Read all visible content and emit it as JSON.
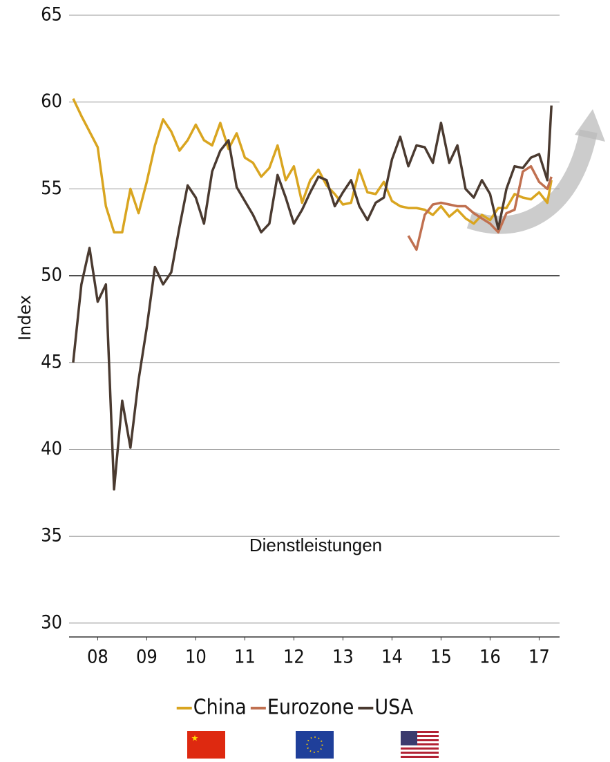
{
  "chart_data": {
    "type": "line",
    "y_label": "Index",
    "annotation": "Dienstleistungen",
    "x": [
      0,
      2,
      4,
      6,
      8,
      10,
      12,
      14,
      16,
      18,
      20,
      22,
      24,
      26,
      28,
      30,
      32,
      34,
      36,
      38,
      40,
      42,
      44,
      46,
      48,
      50,
      52,
      54,
      56,
      58,
      60,
      62,
      64,
      66,
      68,
      70,
      72,
      74,
      76,
      78,
      80,
      82,
      84,
      86,
      88,
      90,
      92,
      94,
      96,
      98,
      100,
      102,
      104,
      106,
      108,
      110,
      112,
      114,
      116,
      117
    ],
    "xlim": [
      -1,
      119
    ],
    "xticks": [
      {
        "value": 6,
        "label": "08"
      },
      {
        "value": 18,
        "label": "09"
      },
      {
        "value": 30,
        "label": "10"
      },
      {
        "value": 42,
        "label": "11"
      },
      {
        "value": 54,
        "label": "12"
      },
      {
        "value": 66,
        "label": "13"
      },
      {
        "value": 78,
        "label": "14"
      },
      {
        "value": 90,
        "label": "15"
      },
      {
        "value": 102,
        "label": "16"
      },
      {
        "value": 114,
        "label": "17"
      }
    ],
    "ylim": [
      29.2,
      65
    ],
    "yticks": [
      30,
      35,
      40,
      45,
      50,
      55,
      60,
      65
    ],
    "grid": true,
    "reference_line": 50,
    "legend": "bottom",
    "series": [
      {
        "name": "China",
        "color": "#d9a520",
        "values": [
          60.2,
          59.2,
          58.3,
          57.4,
          54,
          52.5,
          52.5,
          55,
          53.6,
          55.4,
          57.5,
          59,
          58.3,
          57.2,
          57.8,
          58.7,
          57.8,
          57.5,
          58.8,
          57.3,
          58.2,
          56.8,
          56.5,
          55.7,
          56.2,
          57.5,
          55.5,
          56.3,
          54.2,
          55.5,
          56.1,
          55.2,
          54.7,
          54.1,
          54.2,
          56.1,
          54.8,
          54.7,
          55.4,
          54.3,
          54.0,
          53.9,
          53.9,
          53.8,
          53.5,
          54.0,
          53.4,
          53.8,
          53.3,
          53.0,
          53.5,
          53.2,
          53.9,
          53.9,
          54.7,
          54.5,
          54.4,
          54.8,
          54.2,
          55.5
        ]
      },
      {
        "name": "Eurozone",
        "color": "#c07050",
        "values": [
          null,
          null,
          null,
          null,
          null,
          null,
          null,
          null,
          null,
          null,
          null,
          null,
          null,
          null,
          null,
          null,
          null,
          null,
          null,
          null,
          null,
          null,
          null,
          null,
          null,
          null,
          null,
          null,
          null,
          null,
          null,
          null,
          null,
          null,
          null,
          null,
          null,
          null,
          null,
          null,
          null,
          52.3,
          51.5,
          53.5,
          54.1,
          54.2,
          54.1,
          54.0,
          54.0,
          53.6,
          53.3,
          53.0,
          52.5,
          53.6,
          53.8,
          56.0,
          56.3,
          55.4,
          55.0,
          55.7
        ]
      },
      {
        "name": "USA",
        "color": "#4a3a30",
        "values": [
          45,
          49.5,
          51.6,
          48.5,
          49.5,
          37.7,
          42.8,
          40.1,
          44,
          47,
          50.5,
          49.5,
          50.2,
          52.8,
          55.2,
          54.5,
          53,
          56,
          57.2,
          57.8,
          55.1,
          54.3,
          53.5,
          52.5,
          53.0,
          55.8,
          54.5,
          53.0,
          53.8,
          54.8,
          55.7,
          55.5,
          54.0,
          54.8,
          55.5,
          54.0,
          53.2,
          54.2,
          54.5,
          56.7,
          58.0,
          56.3,
          57.5,
          57.4,
          56.5,
          58.8,
          56.5,
          57.5,
          55.0,
          54.5,
          55.5,
          54.7,
          52.7,
          55.0,
          56.3,
          56.2,
          56.8,
          57.0,
          55.5,
          59.8
        ]
      }
    ]
  }
}
